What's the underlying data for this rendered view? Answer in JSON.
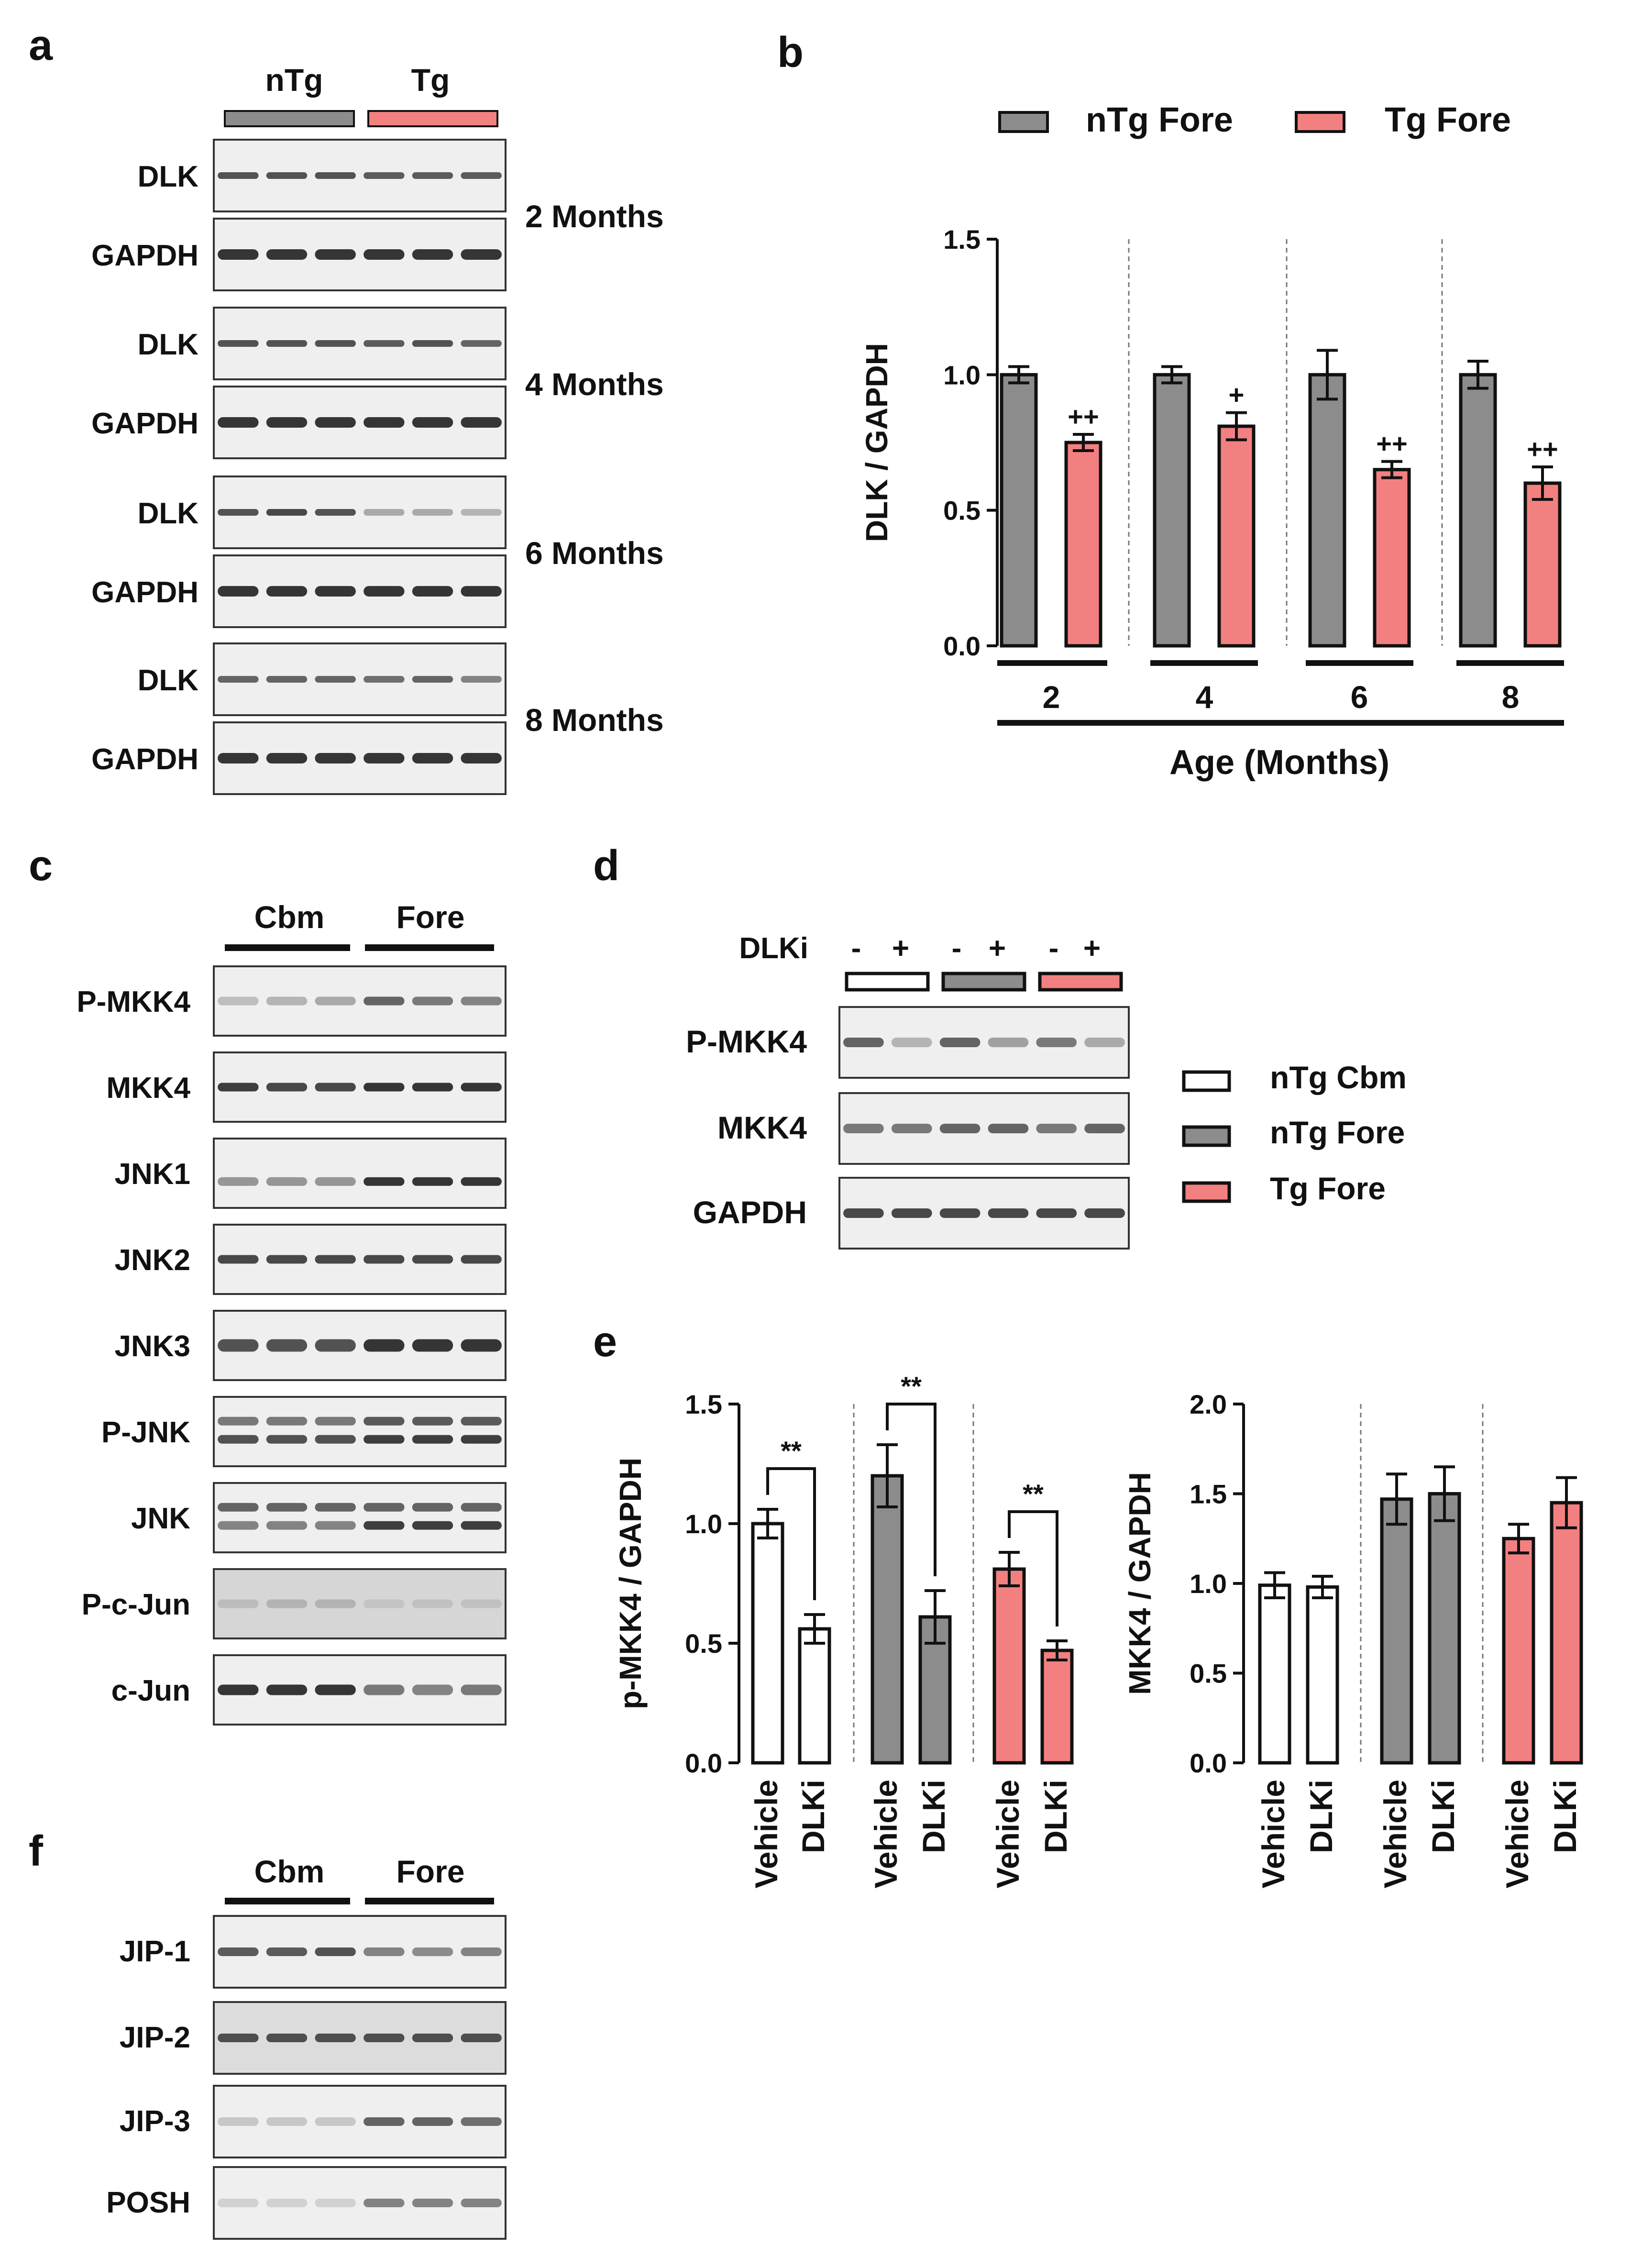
{
  "colors": {
    "ntg": "#8c8c8c",
    "tg": "#f38080",
    "cbm": "#ffffff",
    "dark": "#111111",
    "blot_bg": "#efefef",
    "band": "#2a2a2a"
  },
  "panel_labels": {
    "a": "a",
    "b": "b",
    "c": "c",
    "d": "d",
    "e": "e",
    "f": "f"
  },
  "panel_a": {
    "groups": [
      "nTg",
      "Tg"
    ],
    "rows": [
      {
        "protein": "DLK",
        "loading": "GAPDH",
        "timepoint": "2 Months"
      },
      {
        "protein": "DLK",
        "loading": "GAPDH",
        "timepoint": "4 Months"
      },
      {
        "protein": "DLK",
        "loading": "GAPDH",
        "timepoint": "6 Months"
      },
      {
        "protein": "DLK",
        "loading": "GAPDH",
        "timepoint": "8 Months"
      }
    ]
  },
  "panel_c": {
    "groups": [
      "Cbm",
      "Fore"
    ],
    "rows": [
      "P-MKK4",
      "MKK4",
      "JNK1",
      "JNK2",
      "JNK3",
      "P-JNK",
      "JNK",
      "P-c-Jun",
      "c-Jun"
    ]
  },
  "panel_d": {
    "treatment_label": "DLKi",
    "signs": [
      "-",
      "+",
      "-",
      "+",
      "-",
      "+"
    ],
    "rows": [
      "P-MKK4",
      "MKK4",
      "GAPDH"
    ],
    "legend": [
      "nTg Cbm",
      "nTg Fore",
      "Tg Fore"
    ]
  },
  "panel_f": {
    "groups": [
      "Cbm",
      "Fore"
    ],
    "rows": [
      "JIP-1",
      "JIP-2",
      "JIP-3",
      "POSH"
    ]
  },
  "chart_data": [
    {
      "id": "b",
      "type": "bar",
      "ylabel": "DLK / GAPDH",
      "xlabel": "Age (Months)",
      "ylim": [
        0,
        1.5
      ],
      "yticks": [
        "0.0",
        "0.5",
        "1.0",
        "1.5"
      ],
      "categories": [
        "2",
        "4",
        "6",
        "8"
      ],
      "legend": [
        "nTg Fore",
        "Tg Fore"
      ],
      "series": [
        {
          "name": "nTg Fore",
          "values": [
            1.0,
            1.0,
            1.0,
            1.0
          ],
          "errors": [
            0.03,
            0.03,
            0.09,
            0.05
          ]
        },
        {
          "name": "Tg Fore",
          "values": [
            0.75,
            0.81,
            0.65,
            0.6
          ],
          "errors": [
            0.03,
            0.05,
            0.03,
            0.06
          ]
        }
      ],
      "annotations": [
        "++",
        "+",
        "++",
        "++"
      ]
    },
    {
      "id": "e-left",
      "type": "bar",
      "ylabel": "p-MKK4 / GAPDH",
      "ylim": [
        0,
        1.5
      ],
      "yticks": [
        "0.0",
        "0.5",
        "1.0",
        "1.5"
      ],
      "categories": [
        "Vehicle",
        "DLKi",
        "Vehicle",
        "DLKi",
        "Vehicle",
        "DLKi"
      ],
      "values": [
        1.0,
        0.56,
        1.2,
        0.61,
        0.81,
        0.47
      ],
      "errors": [
        0.06,
        0.06,
        0.13,
        0.11,
        0.07,
        0.04
      ],
      "groups": [
        "nTg Cbm",
        "nTg Cbm",
        "nTg Fore",
        "nTg Fore",
        "Tg Fore",
        "Tg Fore"
      ],
      "significance": [
        "**",
        "**",
        "**"
      ]
    },
    {
      "id": "e-right",
      "type": "bar",
      "ylabel": "MKK4 / GAPDH",
      "ylim": [
        0,
        2.0
      ],
      "yticks": [
        "0.0",
        "0.5",
        "1.0",
        "1.5",
        "2.0"
      ],
      "categories": [
        "Vehicle",
        "DLKi",
        "Vehicle",
        "DLKi",
        "Vehicle",
        "DLKi"
      ],
      "values": [
        0.99,
        0.98,
        1.47,
        1.5,
        1.25,
        1.45
      ],
      "errors": [
        0.07,
        0.06,
        0.14,
        0.15,
        0.08,
        0.14
      ],
      "groups": [
        "nTg Cbm",
        "nTg Cbm",
        "nTg Fore",
        "nTg Fore",
        "Tg Fore",
        "Tg Fore"
      ]
    }
  ]
}
